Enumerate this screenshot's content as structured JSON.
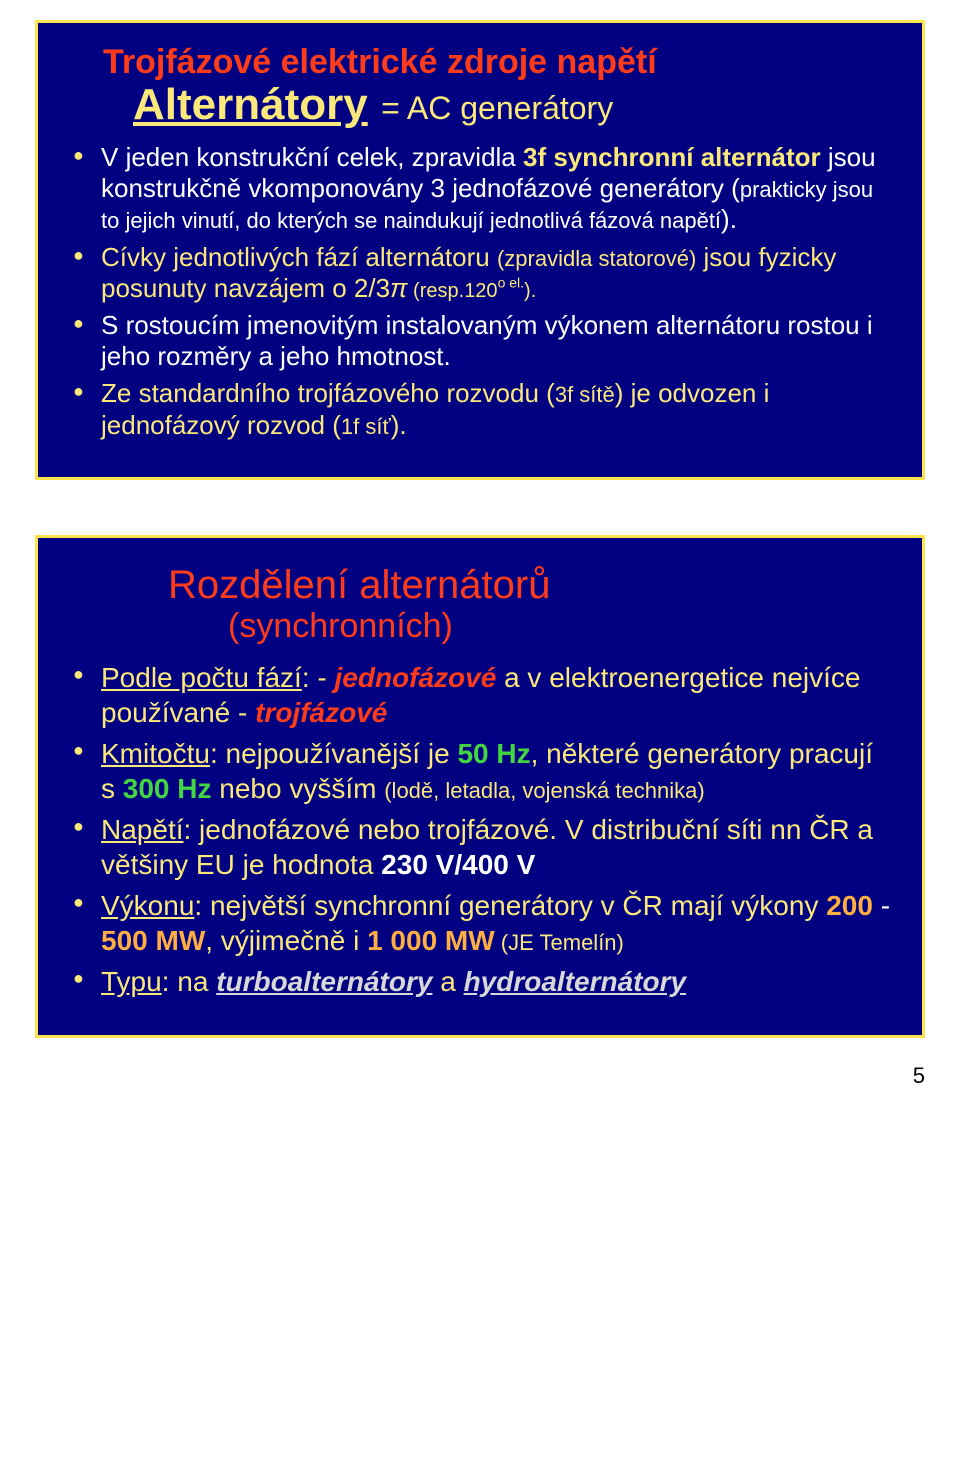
{
  "page_number": "5",
  "slide1": {
    "title_line1": "Trojfázové elektrické zdroje napětí",
    "title_main": "Alternátory",
    "title_sub": "= AC generátory",
    "bullets": {
      "b1": {
        "t1": "V jeden konstrukční celek, zpravidla ",
        "t2": "3f synchronní alternátor",
        "t3": " jsou konstrukčně vkomponovány 3 jednofázové generátory (",
        "t4": "prakticky jsou to jejich vinutí, do kterých se naindukují jednotlivá fázová napětí",
        "t5": ")."
      },
      "b2": {
        "t1": "Cívky jednotlivých fází alternátoru ",
        "t2": "(zpravidla statorové)",
        "t3": " jsou fyzicky posunuty navzájem o 2/3",
        "t4": "π",
        "t5": "  (resp.",
        "t6": "120",
        "t7": "o el.",
        "t8": ")."
      },
      "b3": "S rostoucím jmenovitým instalovaným výkonem alternátoru rostou i jeho rozměry a jeho hmotnost.",
      "b4": {
        "t1": "Ze standardního trojfázového rozvodu (",
        "t2": "3f sítě",
        "t3": ") je odvozen i jednofázový rozvod (",
        "t4": "1f síť",
        "t5": ")."
      }
    }
  },
  "slide2": {
    "title_main": "Rozdělení alternátorů",
    "title_sub": "(synchronních)",
    "bullets": {
      "b1": {
        "t1": "Podle počtu fází",
        "t2": ": - ",
        "t3": "jednofázové",
        "t4": "  a v elektroenergetice nejvíce používané - ",
        "t5": "trojfázové"
      },
      "b2": {
        "t1": "Kmitočtu",
        "t2": ":  nejpoužívanější je ",
        "t3": "50 Hz",
        "t4": ", některé generátory pracují s ",
        "t5": "300 Hz",
        "t6": " nebo vyšším ",
        "t7": "(lodě, letadla, vojenská technika)"
      },
      "b3": {
        "t1": "Napětí",
        "t2": ":  jednofázové nebo trojfázové. V distribuční síti nn ČR a většiny EU je hodnota ",
        "t3": "230 V/400 V"
      },
      "b4": {
        "t1": "Výkonu",
        "t2": ":   největší synchronní generátory v ČR mají výkony ",
        "t3": "200",
        "t4": " - ",
        "t5": "500 MW",
        "t6": ", výjimečně i ",
        "t7": "1 000 MW",
        "t8": " (JE Temelín)"
      },
      "b5": {
        "t1": "Typu",
        "t2": ":  na ",
        "t3": "turboalternátory",
        "t4": "  a  ",
        "t5": "hydroalternátory"
      }
    }
  }
}
